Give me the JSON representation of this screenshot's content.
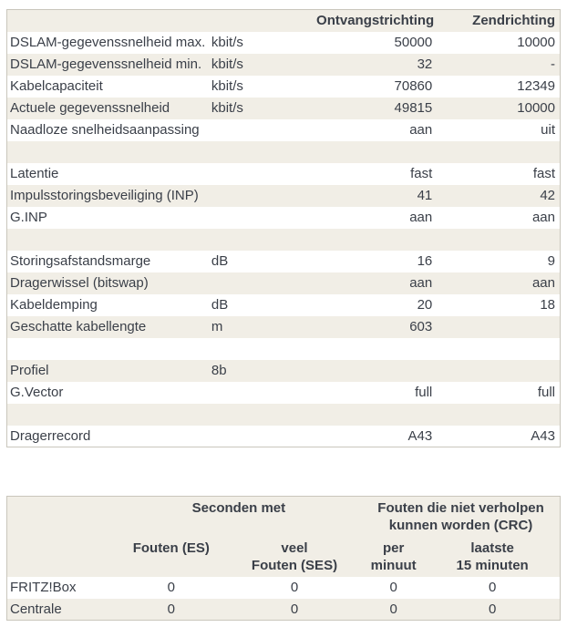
{
  "colors": {
    "row_beige": "#f1eee6",
    "row_white": "#ffffff",
    "table_border": "#c9c6bc",
    "text": "#3a3f48"
  },
  "dsl_table": {
    "headers": {
      "rx": "Ontvangstrichting",
      "tx": "Zendrichting"
    },
    "rows": [
      {
        "label": "DSLAM-gegevenssnelheid max.",
        "unit": "kbit/s",
        "rx": "50000",
        "tx": "10000"
      },
      {
        "label": "DSLAM-gegevenssnelheid min.",
        "unit": "kbit/s",
        "rx": "32",
        "tx": "-"
      },
      {
        "label": "Kabelcapaciteit",
        "unit": "kbit/s",
        "rx": "70860",
        "tx": "12349"
      },
      {
        "label": "Actuele gegevenssnelheid",
        "unit": "kbit/s",
        "rx": "49815",
        "tx": "10000"
      },
      {
        "label": "Naadloze snelheidsaanpassing",
        "unit": "",
        "rx": "aan",
        "tx": "uit"
      },
      {
        "separator": true
      },
      {
        "label": "Latentie",
        "unit": "",
        "rx": "fast",
        "tx": "fast"
      },
      {
        "label": "Impulsstoringsbeveiliging (INP)",
        "unit": "",
        "rx": "41",
        "tx": "42"
      },
      {
        "label": "G.INP",
        "unit": "",
        "rx": "aan",
        "tx": "aan"
      },
      {
        "separator": true
      },
      {
        "label": "Storingsafstandsmarge",
        "unit": "dB",
        "rx": "16",
        "tx": "9"
      },
      {
        "label": "Dragerwissel (bitswap)",
        "unit": "",
        "rx": "aan",
        "tx": "aan"
      },
      {
        "label": "Kabeldemping",
        "unit": "dB",
        "rx": "20",
        "tx": "18"
      },
      {
        "label": "Geschatte kabellengte",
        "unit": "m",
        "rx": "603",
        "tx": ""
      },
      {
        "separator": true
      },
      {
        "label": "Profiel",
        "unit": "8b",
        "rx": "",
        "tx": ""
      },
      {
        "label": "G.Vector",
        "unit": "",
        "rx": "full",
        "tx": "full"
      },
      {
        "separator": true
      },
      {
        "label": "Dragerrecord",
        "unit": "",
        "rx": "A43",
        "tx": "A43"
      }
    ]
  },
  "error_table": {
    "group_headers": {
      "seconds": "Seconden met",
      "crc": "Fouten die niet verholpen\nkunnen worden (CRC)"
    },
    "col_headers": {
      "es": "Fouten (ES)",
      "ses": "veel\nFouten (SES)",
      "per_min": "per\nminuut",
      "last15": "laatste\n15 minuten"
    },
    "rows": [
      {
        "label": "FRITZ!Box",
        "es": "0",
        "ses": "0",
        "per_min": "0",
        "last15": "0"
      },
      {
        "label": "Centrale",
        "es": "0",
        "ses": "0",
        "per_min": "0",
        "last15": "0"
      }
    ]
  }
}
